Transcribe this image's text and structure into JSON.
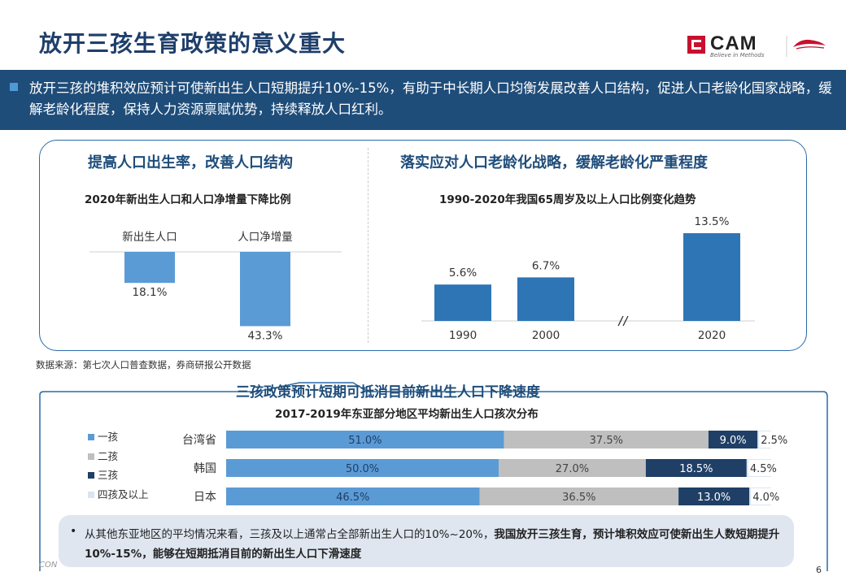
{
  "page": {
    "title": "放开三孩生育政策的意义重大",
    "logo_text": "CAM",
    "logo_sub": "Believe in Methods",
    "page_number": "6",
    "footer_mark": "CON"
  },
  "band": {
    "text": "放开三孩的堆积效应预计可使新出生人口短期提升10%-15%，有助于中长期人口均衡发展改善人口结构，促进人口老龄化国家战略，缓解老龄化程度，保持人力资源禀赋优势，持续释放人口红利。"
  },
  "left": {
    "heading": "提高人口出生率，改善人口结构",
    "subheading": "2020年新出生人口和人口净增量下降比例"
  },
  "right": {
    "heading": "落实应对人口老龄化战略，缓解老龄化严重程度",
    "subheading": "1990-2020年我国65周岁及以上人口比例变化趋势"
  },
  "source": "数据来源：第七次人口普查数据，券商研报公开数据",
  "bottom": {
    "heading": "三孩政策预计短期可抵消目前新出生人口下降速度",
    "subheading": "2017-2019年东亚部分地区平均新出生人口孩次分布"
  },
  "callout": {
    "bullet": "•",
    "text_plain": "从其他东亚地区的平均情况来看，三孩及以上通常占全部新出生人口的10%~20%，",
    "text_bold": "我国放开三孩生育，预计堆积效应可使新出生人数短期提升10%-15%，能够在短期抵消目前的新出生人口下滑速度"
  },
  "colors": {
    "navy": "#1f4d7a",
    "blue": "#2e75b6",
    "light_blue": "#5b9bd5",
    "gray": "#bfbfbf",
    "dark_navy": "#1f3f66",
    "pale": "#dbe5f1"
  },
  "chart_data": [
    {
      "type": "bar",
      "categories": [
        "新出生人口",
        "人口净增量"
      ],
      "values": [
        18.1,
        43.3
      ],
      "value_labels": [
        "18.1%",
        "43.3%"
      ],
      "direction": "downward",
      "unit": "%"
    },
    {
      "type": "bar",
      "categories": [
        "1990",
        "2000",
        "2020"
      ],
      "values": [
        5.6,
        6.7,
        13.5
      ],
      "value_labels": [
        "5.6%",
        "6.7%",
        "13.5%"
      ],
      "axis_break": "between 2000 and 2020",
      "unit": "%"
    },
    {
      "type": "bar",
      "orientation": "horizontal",
      "stacked": true,
      "categories": [
        "台湾省",
        "韩国",
        "日本"
      ],
      "series": [
        {
          "name": "一孩",
          "values": [
            51.0,
            50.0,
            46.5
          ],
          "labels": [
            "51.0%",
            "50.0%",
            "46.5%"
          ]
        },
        {
          "name": "二孩",
          "values": [
            37.5,
            27.0,
            36.5
          ],
          "labels": [
            "37.5%",
            "27.0%",
            "36.5%"
          ]
        },
        {
          "name": "三孩",
          "values": [
            9.0,
            18.5,
            13.0
          ],
          "labels": [
            "9.0%",
            "18.5%",
            "13.0%"
          ]
        },
        {
          "name": "四孩及以上",
          "values": [
            2.5,
            4.5,
            4.0
          ],
          "labels": [
            "2.5%",
            "4.5%",
            "4.0%"
          ]
        }
      ],
      "legend_position": "left"
    }
  ]
}
